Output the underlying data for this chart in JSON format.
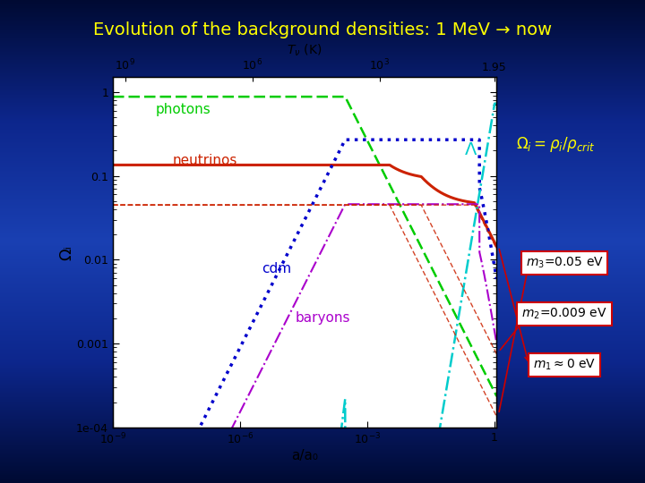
{
  "title": "Evolution of the background densities: 1 MeV → now",
  "title_color": "#FFFF00",
  "xlabel": "a/a₀",
  "ylabel": "Ωᵢ",
  "top_xlabel": "Tν (K)",
  "omega_label": "Ωᵢ= ρᵢ/ρₙᵣᵢᵗ",
  "omega_label_color": "#FFFF00",
  "photon_color": "#00cc00",
  "neutrino_color": "#cc2200",
  "cdm_color": "#0000cc",
  "baryon_color": "#aa00cc",
  "lambda_color": "#00cccc",
  "nu_ind_color": "#cc2200",
  "box_ec": "#cc0000",
  "box_fc": "#ffffff",
  "mass_texts": [
    "m₃=0.05 eV",
    "m₂=0.009 eV",
    "m₁≈0 eV"
  ],
  "bg_colors": [
    "#000030",
    "#0010a0",
    "#1040cc",
    "#0010a0",
    "#000030"
  ],
  "fig_bg": "#0a1560"
}
